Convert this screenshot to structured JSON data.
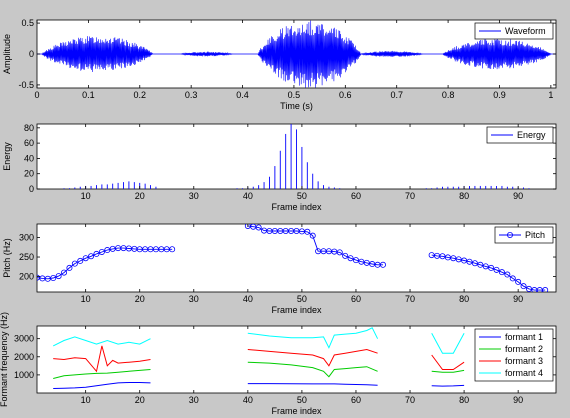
{
  "chart_data": [
    {
      "type": "line",
      "series": [
        {
          "name": "Waveform",
          "color": "#0000ff"
        }
      ],
      "segments": [
        {
          "x": [
            0.01,
            0.225
          ],
          "amp": 0.3
        },
        {
          "x": [
            0.28,
            0.38
          ],
          "amp": 0.04
        },
        {
          "x": [
            0.43,
            0.63
          ],
          "amp": 0.55
        },
        {
          "x": [
            0.63,
            0.75
          ],
          "amp": 0.05
        },
        {
          "x": [
            0.79,
            1.0
          ],
          "amp": 0.25
        }
      ],
      "xlim": [
        0,
        1.01
      ],
      "ylim": [
        -0.55,
        0.55
      ],
      "xticks": [
        0,
        0.1,
        0.2,
        0.3,
        0.4,
        0.5,
        0.6,
        0.7,
        0.8,
        0.9,
        1
      ],
      "yticks": [
        -0.5,
        0,
        0.5
      ],
      "xlabel": "Time (s)",
      "ylabel": "Amplitude",
      "legend_position": "top-right"
    },
    {
      "type": "bar",
      "style": "stem",
      "series": [
        {
          "name": "Energy",
          "color": "#0000ff"
        }
      ],
      "x": [
        6,
        7,
        8,
        9,
        10,
        11,
        12,
        13,
        14,
        15,
        16,
        17,
        18,
        19,
        20,
        21,
        22,
        23,
        38,
        39,
        40,
        41,
        42,
        43,
        44,
        45,
        46,
        47,
        48,
        49,
        50,
        51,
        52,
        53,
        54,
        55,
        56,
        57,
        73,
        74,
        75,
        76,
        77,
        78,
        79,
        80,
        81,
        82,
        83,
        84,
        85,
        86,
        87,
        88,
        89,
        90,
        91,
        92
      ],
      "values": [
        1,
        1,
        2,
        3,
        4,
        4,
        5,
        6,
        6,
        7,
        8,
        9,
        10,
        9,
        8,
        7,
        5,
        3,
        1,
        1,
        2,
        3,
        5,
        9,
        16,
        30,
        50,
        72,
        85,
        78,
        55,
        35,
        20,
        10,
        5,
        3,
        2,
        1,
        1,
        1,
        2,
        3,
        3,
        3,
        3,
        4,
        4,
        4,
        4,
        4,
        4,
        4,
        4,
        3,
        3,
        2,
        2,
        1
      ],
      "xlim": [
        1,
        97
      ],
      "ylim": [
        0,
        85
      ],
      "xticks": [
        10,
        20,
        30,
        40,
        50,
        60,
        70,
        80,
        90
      ],
      "yticks": [
        0,
        20,
        40,
        60,
        80
      ],
      "xlabel": "Frame index",
      "ylabel": "Energy",
      "legend_position": "top-right"
    },
    {
      "type": "line",
      "marker": "circle",
      "series": [
        {
          "name": "Pitch",
          "color": "#0000ff"
        }
      ],
      "segments": [
        {
          "x": [
            1,
            2,
            3,
            4,
            5,
            6,
            7,
            8,
            9,
            10,
            11,
            12,
            13,
            14,
            15,
            16,
            17,
            18,
            19,
            20,
            21,
            22,
            23,
            24,
            25,
            26
          ],
          "y": [
            197,
            195,
            194,
            196,
            201,
            210,
            222,
            233,
            240,
            247,
            252,
            258,
            263,
            268,
            271,
            273,
            273,
            272,
            271,
            270,
            270,
            270,
            270,
            270,
            270,
            270
          ]
        },
        {
          "x": [
            40,
            41,
            42,
            43,
            44,
            45,
            46,
            47,
            48,
            49,
            50,
            51,
            52,
            53,
            54,
            55,
            56,
            57,
            58,
            59,
            60,
            61,
            62,
            63,
            64,
            65
          ],
          "y": [
            330,
            328,
            326,
            318,
            317,
            317,
            317,
            317,
            317,
            317,
            316,
            315,
            305,
            265,
            265,
            265,
            264,
            262,
            253,
            247,
            242,
            238,
            235,
            232,
            230,
            230
          ]
        },
        {
          "x": [
            74,
            75,
            76,
            77,
            78,
            79,
            80,
            81,
            82,
            83,
            84,
            85,
            86,
            87,
            88,
            89,
            90,
            91,
            92,
            93,
            94,
            95
          ],
          "y": [
            255,
            253,
            252,
            249,
            247,
            244,
            241,
            238,
            234,
            230,
            226,
            222,
            217,
            211,
            205,
            195,
            186,
            175,
            168,
            165,
            165,
            165
          ]
        }
      ],
      "xlim": [
        1,
        97
      ],
      "ylim": [
        160,
        335
      ],
      "xticks": [
        10,
        20,
        30,
        40,
        50,
        60,
        70,
        80,
        90
      ],
      "yticks": [
        200,
        250,
        300
      ],
      "xlabel": "Frame index",
      "ylabel": "Pitch (Hz)",
      "legend_position": "top-right"
    },
    {
      "type": "line",
      "series": [
        {
          "name": "formant 1",
          "color": "#0000ff",
          "segments": [
            {
              "x": [
                4,
                6,
                8,
                10,
                12,
                14,
                16,
                18,
                20,
                22
              ],
              "y": [
                250,
                260,
                280,
                320,
                400,
                480,
                560,
                580,
                580,
                560
              ]
            },
            {
              "x": [
                40,
                44,
                48,
                52,
                54,
                56,
                58,
                60,
                62,
                64
              ],
              "y": [
                520,
                520,
                510,
                500,
                500,
                500,
                480,
                470,
                460,
                430
              ]
            },
            {
              "x": [
                74,
                76,
                78,
                80
              ],
              "y": [
                400,
                380,
                390,
                420
              ]
            }
          ]
        },
        {
          "name": "formant 2",
          "color": "#00cc00",
          "segments": [
            {
              "x": [
                4,
                6,
                8,
                10,
                12,
                14,
                16,
                18,
                20,
                22
              ],
              "y": [
                800,
                950,
                1000,
                1050,
                1080,
                1100,
                1150,
                1200,
                1250,
                1300
              ]
            },
            {
              "x": [
                40,
                44,
                48,
                52,
                54,
                55,
                56,
                58,
                60,
                62,
                64
              ],
              "y": [
                1700,
                1650,
                1550,
                1400,
                1200,
                900,
                1300,
                1350,
                1400,
                1450,
                1200
              ]
            },
            {
              "x": [
                74,
                76,
                78,
                80
              ],
              "y": [
                1200,
                1150,
                1150,
                1250
              ]
            }
          ]
        },
        {
          "name": "formant 3",
          "color": "#ff0000",
          "segments": [
            {
              "x": [
                4,
                6,
                8,
                10,
                12,
                13,
                14,
                15,
                16,
                18,
                20,
                22
              ],
              "y": [
                1900,
                1850,
                1950,
                1900,
                1200,
                2600,
                1500,
                1800,
                1650,
                1700,
                1750,
                1850
              ]
            },
            {
              "x": [
                40,
                44,
                48,
                52,
                54,
                55,
                56,
                58,
                60,
                62,
                64
              ],
              "y": [
                2400,
                2300,
                2200,
                2100,
                1900,
                1500,
                2100,
                2200,
                2300,
                2400,
                2200
              ]
            },
            {
              "x": [
                74,
                76,
                78,
                80
              ],
              "y": [
                2100,
                1300,
                1300,
                1700
              ]
            }
          ]
        },
        {
          "name": "formant 4",
          "color": "#00ffff",
          "segments": [
            {
              "x": [
                4,
                6,
                8,
                10,
                12,
                14,
                16,
                18,
                20,
                22
              ],
              "y": [
                2600,
                2900,
                3100,
                2900,
                2700,
                2900,
                2700,
                2800,
                2700,
                3000
              ]
            },
            {
              "x": [
                40,
                44,
                48,
                52,
                54,
                55,
                56,
                58,
                60,
                62,
                63,
                64
              ],
              "y": [
                3300,
                3150,
                3050,
                3050,
                3100,
                2500,
                3200,
                3250,
                3300,
                3450,
                3600,
                3000
              ]
            },
            {
              "x": [
                74,
                76,
                78,
                80
              ],
              "y": [
                3300,
                2200,
                2200,
                3300
              ]
            }
          ]
        }
      ],
      "xlim": [
        1,
        97
      ],
      "ylim": [
        0,
        3700
      ],
      "xticks": [
        10,
        20,
        30,
        40,
        50,
        60,
        70,
        80,
        90
      ],
      "yticks": [
        1000,
        2000,
        3000
      ],
      "xlabel": "Frame index",
      "ylabel": "Formant frequency (Hz)",
      "legend_position": "top-right"
    }
  ]
}
